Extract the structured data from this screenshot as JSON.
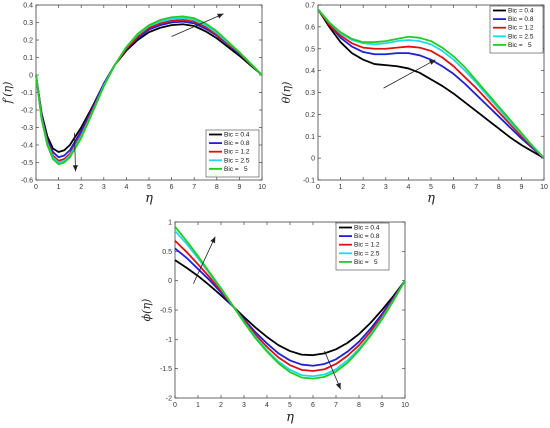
{
  "chart_data": [
    {
      "type": "line",
      "ylabel": "f′(η)",
      "xlabel": "η",
      "xlim": [
        0,
        10
      ],
      "ylim": [
        -0.6,
        0.4
      ],
      "xticks": [
        "0",
        "1",
        "2",
        "3",
        "4",
        "5",
        "6",
        "7",
        "8",
        "9",
        "10"
      ],
      "yticks": [
        "-0.6",
        "-0.5",
        "-0.4",
        "-0.3",
        "-0.2",
        "-0.1",
        "0",
        "0.1",
        "0.2",
        "0.3",
        "0.4"
      ],
      "legend_position": "lower-right",
      "grid": false,
      "x": [
        0,
        0.25,
        0.5,
        0.75,
        1,
        1.25,
        1.5,
        2,
        2.5,
        3,
        3.5,
        4,
        4.5,
        5,
        5.5,
        6,
        6.5,
        7,
        7.5,
        8,
        8.5,
        9,
        9.5,
        10
      ],
      "series": [
        {
          "name": "Bic = 0.4",
          "color": "#000000",
          "values": [
            0,
            -0.22,
            -0.35,
            -0.42,
            -0.44,
            -0.43,
            -0.4,
            -0.3,
            -0.18,
            -0.05,
            0.06,
            0.14,
            0.2,
            0.245,
            0.27,
            0.285,
            0.29,
            0.28,
            0.25,
            0.21,
            0.16,
            0.11,
            0.055,
            0
          ]
        },
        {
          "name": "Bic = 0.8",
          "color": "#1f1fd6",
          "values": [
            0,
            -0.23,
            -0.37,
            -0.44,
            -0.47,
            -0.46,
            -0.43,
            -0.32,
            -0.19,
            -0.05,
            0.06,
            0.15,
            0.21,
            0.26,
            0.285,
            0.3,
            0.305,
            0.295,
            0.265,
            0.225,
            0.175,
            0.12,
            0.06,
            0
          ]
        },
        {
          "name": "Bic = 1.2",
          "color": "#e01010",
          "values": [
            0,
            -0.24,
            -0.38,
            -0.46,
            -0.49,
            -0.48,
            -0.45,
            -0.34,
            -0.2,
            -0.06,
            0.06,
            0.15,
            0.22,
            0.27,
            0.295,
            0.31,
            0.315,
            0.305,
            0.275,
            0.23,
            0.18,
            0.125,
            0.06,
            0
          ]
        },
        {
          "name": "Bic = 2.5",
          "color": "#22d8e6",
          "values": [
            0,
            -0.25,
            -0.39,
            -0.47,
            -0.5,
            -0.49,
            -0.46,
            -0.35,
            -0.21,
            -0.06,
            0.06,
            0.16,
            0.23,
            0.28,
            0.305,
            0.32,
            0.325,
            0.315,
            0.285,
            0.24,
            0.185,
            0.13,
            0.065,
            0
          ]
        },
        {
          "name": "Bic =   5",
          "color": "#22cc22",
          "values": [
            0,
            -0.255,
            -0.4,
            -0.48,
            -0.51,
            -0.5,
            -0.47,
            -0.36,
            -0.215,
            -0.065,
            0.06,
            0.16,
            0.235,
            0.285,
            0.315,
            0.33,
            0.335,
            0.325,
            0.295,
            0.25,
            0.19,
            0.13,
            0.065,
            0
          ]
        }
      ],
      "arrows": [
        {
          "from": [
            1.7,
            -0.33
          ],
          "to": [
            1.75,
            -0.55
          ]
        },
        {
          "from": [
            6.0,
            0.22
          ],
          "to": [
            8.3,
            0.35
          ]
        }
      ]
    },
    {
      "type": "line",
      "ylabel": "θ(η)",
      "xlabel": "η",
      "xlim": [
        0,
        10
      ],
      "ylim": [
        -0.1,
        0.7
      ],
      "xticks": [
        "0",
        "1",
        "2",
        "3",
        "4",
        "5",
        "6",
        "7",
        "8",
        "9",
        "10"
      ],
      "yticks": [
        "-0.1",
        "0",
        "0.1",
        "0.2",
        "0.3",
        "0.4",
        "0.5",
        "0.6",
        "0.7"
      ],
      "legend_position": "top-right",
      "grid": false,
      "x": [
        0,
        0.5,
        1,
        1.5,
        2,
        2.5,
        3,
        3.5,
        4,
        4.5,
        5,
        5.5,
        6,
        6.5,
        7,
        7.5,
        8,
        8.5,
        9,
        9.5,
        10
      ],
      "series": [
        {
          "name": "Bic = 0.4",
          "color": "#000000",
          "values": [
            0.68,
            0.6,
            0.53,
            0.48,
            0.45,
            0.43,
            0.425,
            0.42,
            0.41,
            0.39,
            0.36,
            0.33,
            0.295,
            0.255,
            0.215,
            0.175,
            0.135,
            0.095,
            0.06,
            0.03,
            0
          ]
        },
        {
          "name": "Bic = 0.8",
          "color": "#1f1fd6",
          "values": [
            0.68,
            0.61,
            0.55,
            0.51,
            0.485,
            0.475,
            0.475,
            0.48,
            0.48,
            0.47,
            0.45,
            0.42,
            0.385,
            0.34,
            0.29,
            0.24,
            0.19,
            0.14,
            0.09,
            0.045,
            0
          ]
        },
        {
          "name": "Bic = 1.2",
          "color": "#e01010",
          "values": [
            0.68,
            0.61,
            0.56,
            0.525,
            0.505,
            0.5,
            0.5,
            0.505,
            0.51,
            0.505,
            0.49,
            0.46,
            0.42,
            0.37,
            0.32,
            0.265,
            0.21,
            0.155,
            0.1,
            0.05,
            0
          ]
        },
        {
          "name": "Bic = 2.5",
          "color": "#22d8e6",
          "values": [
            0.68,
            0.62,
            0.57,
            0.54,
            0.525,
            0.52,
            0.525,
            0.535,
            0.54,
            0.535,
            0.52,
            0.49,
            0.45,
            0.4,
            0.345,
            0.285,
            0.225,
            0.165,
            0.11,
            0.055,
            0
          ]
        },
        {
          "name": "Bic =   5",
          "color": "#22cc22",
          "values": [
            0.68,
            0.62,
            0.575,
            0.545,
            0.53,
            0.53,
            0.535,
            0.545,
            0.555,
            0.55,
            0.535,
            0.505,
            0.465,
            0.415,
            0.355,
            0.295,
            0.235,
            0.175,
            0.115,
            0.055,
            0
          ]
        }
      ],
      "arrows": [
        {
          "from": [
            2.9,
            0.32
          ],
          "to": [
            5.2,
            0.45
          ]
        }
      ]
    },
    {
      "type": "line",
      "ylabel": "ϕ(η)",
      "xlabel": "η",
      "xlim": [
        0,
        10
      ],
      "ylim": [
        -2,
        1
      ],
      "xticks": [
        "0",
        "1",
        "2",
        "3",
        "4",
        "5",
        "6",
        "7",
        "8",
        "9",
        "10"
      ],
      "yticks": [
        "-2",
        "-1.5",
        "-1",
        "-0.5",
        "0",
        "0.5",
        "1"
      ],
      "legend_position": "top-right",
      "grid": false,
      "x": [
        0,
        0.5,
        1,
        1.5,
        2,
        2.5,
        3,
        3.5,
        4,
        4.5,
        5,
        5.5,
        6,
        6.5,
        7,
        7.5,
        8,
        8.5,
        9,
        9.5,
        10
      ],
      "series": [
        {
          "name": "Bic = 0.4",
          "color": "#000000",
          "values": [
            0.35,
            0.22,
            0.08,
            -0.08,
            -0.25,
            -0.43,
            -0.62,
            -0.8,
            -0.96,
            -1.1,
            -1.2,
            -1.26,
            -1.27,
            -1.24,
            -1.17,
            -1.06,
            -0.91,
            -0.72,
            -0.5,
            -0.26,
            0
          ]
        },
        {
          "name": "Bic = 0.8",
          "color": "#1f1fd6",
          "values": [
            0.55,
            0.39,
            0.2,
            0.01,
            -0.2,
            -0.43,
            -0.66,
            -0.88,
            -1.07,
            -1.24,
            -1.36,
            -1.43,
            -1.45,
            -1.42,
            -1.34,
            -1.21,
            -1.04,
            -0.82,
            -0.57,
            -0.29,
            0
          ]
        },
        {
          "name": "Bic = 1.2",
          "color": "#e01010",
          "values": [
            0.68,
            0.49,
            0.28,
            0.06,
            -0.17,
            -0.42,
            -0.68,
            -0.92,
            -1.13,
            -1.31,
            -1.44,
            -1.52,
            -1.54,
            -1.51,
            -1.42,
            -1.28,
            -1.1,
            -0.87,
            -0.61,
            -0.31,
            0
          ]
        },
        {
          "name": "Bic = 2.5",
          "color": "#22d8e6",
          "values": [
            0.85,
            0.63,
            0.38,
            0.12,
            -0.14,
            -0.42,
            -0.7,
            -0.96,
            -1.19,
            -1.38,
            -1.52,
            -1.61,
            -1.63,
            -1.6,
            -1.51,
            -1.36,
            -1.16,
            -0.92,
            -0.64,
            -0.33,
            0
          ]
        },
        {
          "name": "Bic =   5",
          "color": "#22cc22",
          "values": [
            0.92,
            0.68,
            0.42,
            0.14,
            -0.13,
            -0.42,
            -0.71,
            -0.98,
            -1.21,
            -1.41,
            -1.56,
            -1.65,
            -1.67,
            -1.64,
            -1.55,
            -1.4,
            -1.19,
            -0.94,
            -0.66,
            -0.34,
            0
          ]
        }
      ],
      "arrows": [
        {
          "from": [
            0.8,
            -0.05
          ],
          "to": [
            1.75,
            0.75
          ]
        },
        {
          "from": [
            6.5,
            -1.2
          ],
          "to": [
            7.2,
            -1.85
          ]
        }
      ]
    }
  ]
}
